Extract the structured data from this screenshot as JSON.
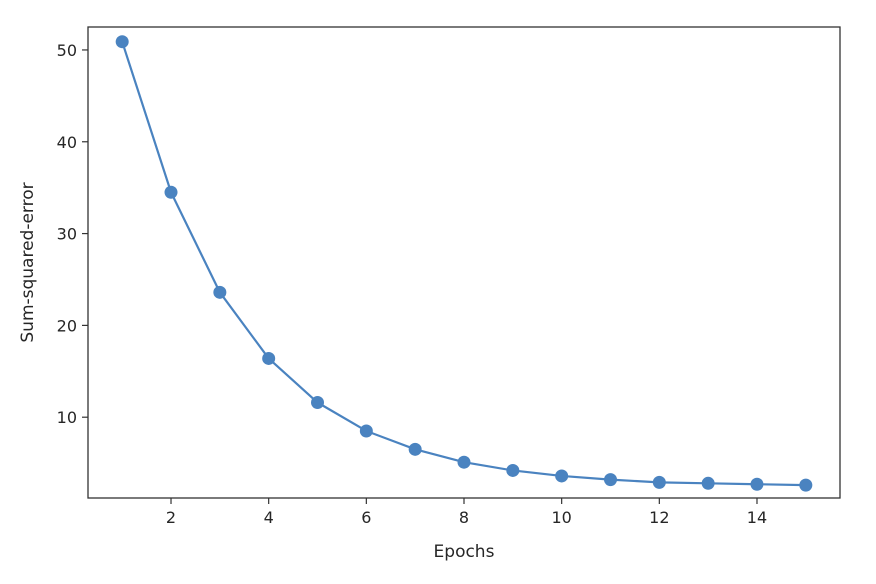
{
  "chart_data": {
    "type": "line",
    "title": "",
    "xlabel": "Epochs",
    "ylabel": "Sum-squared-error",
    "xlim": [
      0.3,
      15.7
    ],
    "ylim": [
      1.2,
      52.5
    ],
    "xticks": [
      2,
      4,
      6,
      8,
      10,
      12,
      14
    ],
    "yticks": [
      10,
      20,
      30,
      40,
      50
    ],
    "grid": false,
    "legend": null,
    "marker": "circle",
    "color": "#4a83c0",
    "series": [
      {
        "x": [
          1,
          2,
          3,
          4,
          5,
          6,
          7,
          8,
          9,
          10,
          11,
          12,
          13,
          14,
          15
        ],
        "values": [
          50.9,
          34.5,
          23.6,
          16.4,
          11.6,
          8.5,
          6.5,
          5.1,
          4.2,
          3.6,
          3.2,
          2.9,
          2.8,
          2.7,
          2.6
        ]
      }
    ]
  }
}
